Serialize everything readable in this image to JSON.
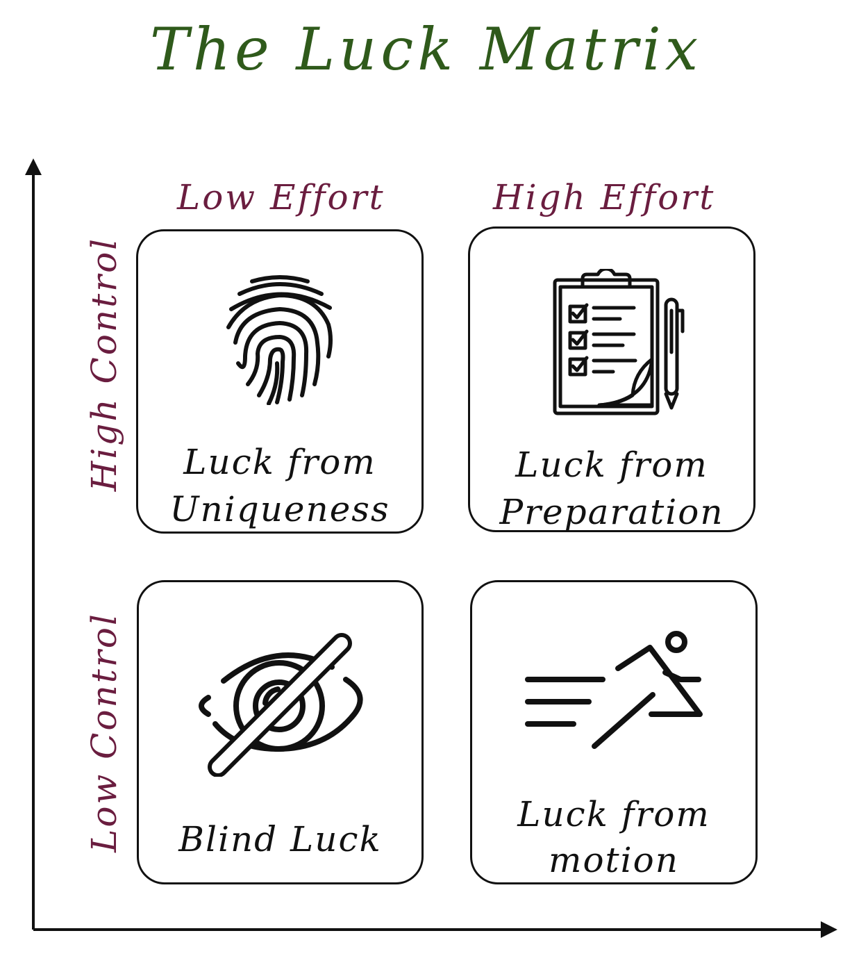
{
  "title": "The Luck Matrix",
  "axes": {
    "columns": [
      "Low Effort",
      "High Effort"
    ],
    "rows": [
      "High Control",
      "Low Control"
    ]
  },
  "quadrants": [
    {
      "label_line1": "Luck from",
      "label_line2": "Uniqueness",
      "icon": "fingerprint-icon"
    },
    {
      "label_line1": "Luck from",
      "label_line2": "Preparation",
      "icon": "clipboard-checklist-icon"
    },
    {
      "label_line1": "Blind Luck",
      "label_line2": "",
      "icon": "eye-crossed-icon"
    },
    {
      "label_line1": "Luck from",
      "label_line2": "motion",
      "icon": "running-person-icon"
    }
  ],
  "colors": {
    "title": "#2f5a1b",
    "axis_labels": "#6a1d3f",
    "ink": "#111111"
  }
}
